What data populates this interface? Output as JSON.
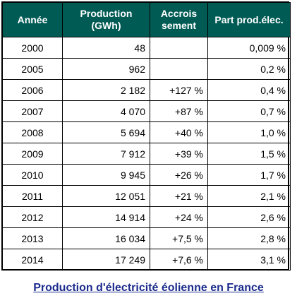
{
  "table": {
    "headers": [
      "Année",
      "Production (GWh)",
      "Accrois sement",
      "Part prod.élec."
    ],
    "rows": [
      {
        "year": "2000",
        "production": "48",
        "growth": "",
        "share": "0,009 %"
      },
      {
        "year": "2005",
        "production": "962",
        "growth": "",
        "share": "0,2 %"
      },
      {
        "year": "2006",
        "production": "2 182",
        "growth": "+127 %",
        "share": "0,4 %"
      },
      {
        "year": "2007",
        "production": "4 070",
        "growth": "+87 %",
        "share": "0,7 %"
      },
      {
        "year": "2008",
        "production": "5 694",
        "growth": "+40 %",
        "share": "1,0 %"
      },
      {
        "year": "2009",
        "production": "7 912",
        "growth": "+39 %",
        "share": "1,5 %"
      },
      {
        "year": "2010",
        "production": "9 945",
        "growth": "+26 %",
        "share": "1,7 %"
      },
      {
        "year": "2011",
        "production": "12 051",
        "growth": "+21 %",
        "share": "2,1 %"
      },
      {
        "year": "2012",
        "production": "14 914",
        "growth": "+24 %",
        "share": "2,6 %"
      },
      {
        "year": "2013",
        "production": "16 034",
        "growth": "+7,5 %",
        "share": "2,8 %"
      },
      {
        "year": "2014",
        "production": "17 249",
        "growth": "+7,6 %",
        "share": "3,1 %"
      }
    ]
  },
  "caption": "Production d'électricité éolienne en France",
  "colors": {
    "header_bg": "#005b55",
    "header_text": "#ffffff",
    "caption": "#1b2b8c"
  }
}
